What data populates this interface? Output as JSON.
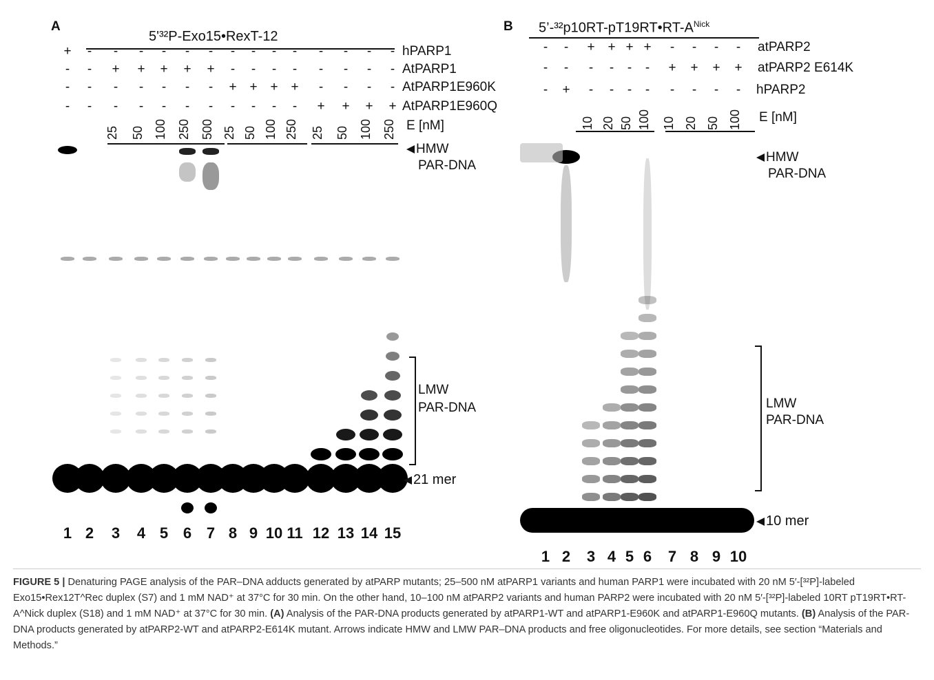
{
  "panelA": {
    "letter": "A",
    "substrate": "5'³²P-Exo15•RexT-12",
    "rows": [
      {
        "name": "hPARP1",
        "signs": [
          "+",
          "-",
          "-",
          "-",
          "-",
          "-",
          "-",
          "-",
          "-",
          "-",
          "-",
          "-",
          "-",
          "-",
          "-"
        ]
      },
      {
        "name": "AtPARP1",
        "signs": [
          "-",
          "-",
          "+",
          "+",
          "+",
          "+",
          "+",
          "-",
          "-",
          "-",
          "-",
          "-",
          "-",
          "-",
          "-"
        ]
      },
      {
        "name": "AtPARP1E960K",
        "signs": [
          "-",
          "-",
          "-",
          "-",
          "-",
          "-",
          "-",
          "+",
          "+",
          "+",
          "+",
          "-",
          "-",
          "-",
          "-"
        ]
      },
      {
        "name": "AtPARP1E960Q",
        "signs": [
          "-",
          "-",
          "-",
          "-",
          "-",
          "-",
          "-",
          "-",
          "-",
          "-",
          "-",
          "+",
          "+",
          "+",
          "+"
        ]
      }
    ],
    "conc_label": "E [nM]",
    "concs": [
      "25",
      "50",
      "100",
      "250",
      "500",
      "25",
      "50",
      "100",
      "250",
      "25",
      "50",
      "100",
      "250"
    ],
    "hmw": "HMW",
    "hmw2": "PAR-DNA",
    "lmw": "LMW",
    "lmw2": "PAR-DNA",
    "mer": "21 mer",
    "lanes": [
      "1",
      "2",
      "3",
      "4",
      "5",
      "6",
      "7",
      "8",
      "9",
      "10",
      "11",
      "12",
      "13",
      "14",
      "15"
    ]
  },
  "panelB": {
    "letter": "B",
    "substrate": "5’-³²p10RT-pT19RT•RT-A",
    "substrate_sup": "Nick",
    "rows": [
      {
        "name": "atPARP2",
        "signs": [
          "-",
          "-",
          "+",
          "+",
          "+",
          "+",
          "-",
          "-",
          "-",
          "-"
        ]
      },
      {
        "name": "atPARP2 E614K",
        "signs": [
          "-",
          "-",
          "-",
          "-",
          "-",
          "-",
          "+",
          "+",
          "+",
          "+"
        ]
      },
      {
        "name": "hPARP2",
        "signs": [
          "-",
          "+",
          "-",
          "-",
          "-",
          "-",
          "-",
          "-",
          "-",
          "-"
        ]
      }
    ],
    "conc_label": "E [nM]",
    "concs": [
      "10",
      "20",
      "50",
      "100",
      "10",
      "20",
      "50",
      "100"
    ],
    "hmw": "HMW",
    "hmw2": "PAR-DNA",
    "lmw": "LMW",
    "lmw2": "PAR-DNA",
    "mer": "10 mer",
    "lanes": [
      "1",
      "2",
      "3",
      "4",
      "5",
      "6",
      "7",
      "8",
      "9",
      "10"
    ]
  },
  "caption": {
    "p1_bold": "FIGURE 5 |",
    "p1": " Denaturing PAGE analysis of the PAR–DNA adducts generated by atPARP mutants; 25–500 nM atPARP1 variants and human PARP1 were incubated with 20 nM 5′-[³²P]-labeled Exo15•Rex12T^Rec duplex (S7) and 1 mM NAD⁺ at 37°C for 30 min. On the other hand, 10–100 nM atPARP2 variants and human PARP2 were incubated with 20 nM 5′-[³²P]-labeled 10RT pT19RT•RT-A^Nick duplex (S18) and 1 mM NAD⁺ at 37°C for 30 min.",
    "a_bold": " (A)",
    "a": " Analysis of the PAR-DNA products generated by atPARP1-WT and atPARP1-E960K and atPARP1-E960Q mutants.",
    "b_bold": " (B)",
    "b": " Analysis of the PAR-DNA products generated by atPARP2-WT and atPARP2-E614K mutant. Arrows indicate HMW and LMW PAR–DNA products and free oligonucleotides. For more details, see section “Materials and Methods.”"
  }
}
